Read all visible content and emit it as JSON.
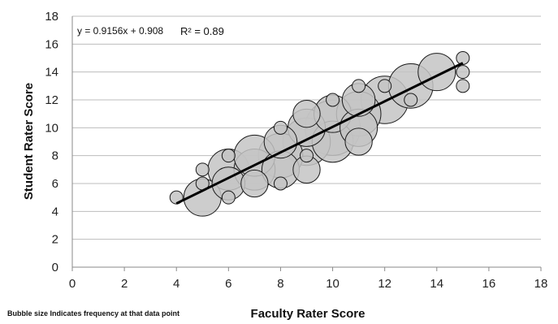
{
  "chart_data": {
    "type": "scatter",
    "subtype": "bubble",
    "title": "",
    "xlabel": "Faculty Rater Score",
    "ylabel": "Student Rater Score",
    "xlim": [
      0,
      18
    ],
    "ylim": [
      0,
      18
    ],
    "xticks": [
      0,
      2,
      4,
      6,
      8,
      10,
      12,
      14,
      16,
      18
    ],
    "yticks": [
      0,
      2,
      4,
      6,
      8,
      10,
      12,
      14,
      16,
      18
    ],
    "grid": "horizontal",
    "points": [
      {
        "x": 4,
        "y": 5,
        "size": 1
      },
      {
        "x": 5,
        "y": 5,
        "size": 4
      },
      {
        "x": 5,
        "y": 6,
        "size": 1
      },
      {
        "x": 5,
        "y": 7,
        "size": 1
      },
      {
        "x": 6,
        "y": 5,
        "size": 1
      },
      {
        "x": 6,
        "y": 6,
        "size": 3
      },
      {
        "x": 6,
        "y": 7,
        "size": 5
      },
      {
        "x": 6,
        "y": 8,
        "size": 1
      },
      {
        "x": 7,
        "y": 6,
        "size": 2
      },
      {
        "x": 7,
        "y": 7,
        "size": 5
      },
      {
        "x": 7,
        "y": 8,
        "size": 5
      },
      {
        "x": 8,
        "y": 6,
        "size": 1
      },
      {
        "x": 8,
        "y": 7,
        "size": 4
      },
      {
        "x": 8,
        "y": 8,
        "size": 6
      },
      {
        "x": 8,
        "y": 9,
        "size": 3
      },
      {
        "x": 8,
        "y": 10,
        "size": 1
      },
      {
        "x": 9,
        "y": 7,
        "size": 2
      },
      {
        "x": 9,
        "y": 8,
        "size": 1
      },
      {
        "x": 9,
        "y": 9,
        "size": 7
      },
      {
        "x": 9,
        "y": 10,
        "size": 4
      },
      {
        "x": 9,
        "y": 11,
        "size": 2
      },
      {
        "x": 10,
        "y": 9,
        "size": 5
      },
      {
        "x": 10,
        "y": 10,
        "size": 10
      },
      {
        "x": 10,
        "y": 11,
        "size": 4
      },
      {
        "x": 10,
        "y": 12,
        "size": 1
      },
      {
        "x": 11,
        "y": 9,
        "size": 2
      },
      {
        "x": 11,
        "y": 10,
        "size": 4
      },
      {
        "x": 11,
        "y": 11,
        "size": 6
      },
      {
        "x": 11,
        "y": 12,
        "size": 3
      },
      {
        "x": 11,
        "y": 13,
        "size": 1
      },
      {
        "x": 12,
        "y": 12,
        "size": 7
      },
      {
        "x": 12,
        "y": 13,
        "size": 1
      },
      {
        "x": 13,
        "y": 12,
        "size": 1
      },
      {
        "x": 13,
        "y": 13,
        "size": 6
      },
      {
        "x": 14,
        "y": 14,
        "size": 4
      },
      {
        "x": 15,
        "y": 13,
        "size": 1
      },
      {
        "x": 15,
        "y": 14,
        "size": 1
      },
      {
        "x": 15,
        "y": 15,
        "size": 1
      }
    ],
    "trendline": {
      "slope": 0.9156,
      "intercept": 0.908,
      "x_range": [
        4,
        15
      ],
      "equation_text": "y = 0.9156x + 0.908",
      "r2_text": "R² = 0.89"
    },
    "annotation": "Bubble size Indicates frequency at that data point",
    "colors": {
      "bubble_fill": "#c4c4c4",
      "bubble_stroke": "#1a1a1a",
      "trendline": "#000000",
      "grid": "#bdbdbd",
      "axis": "#8a8a8a"
    }
  }
}
